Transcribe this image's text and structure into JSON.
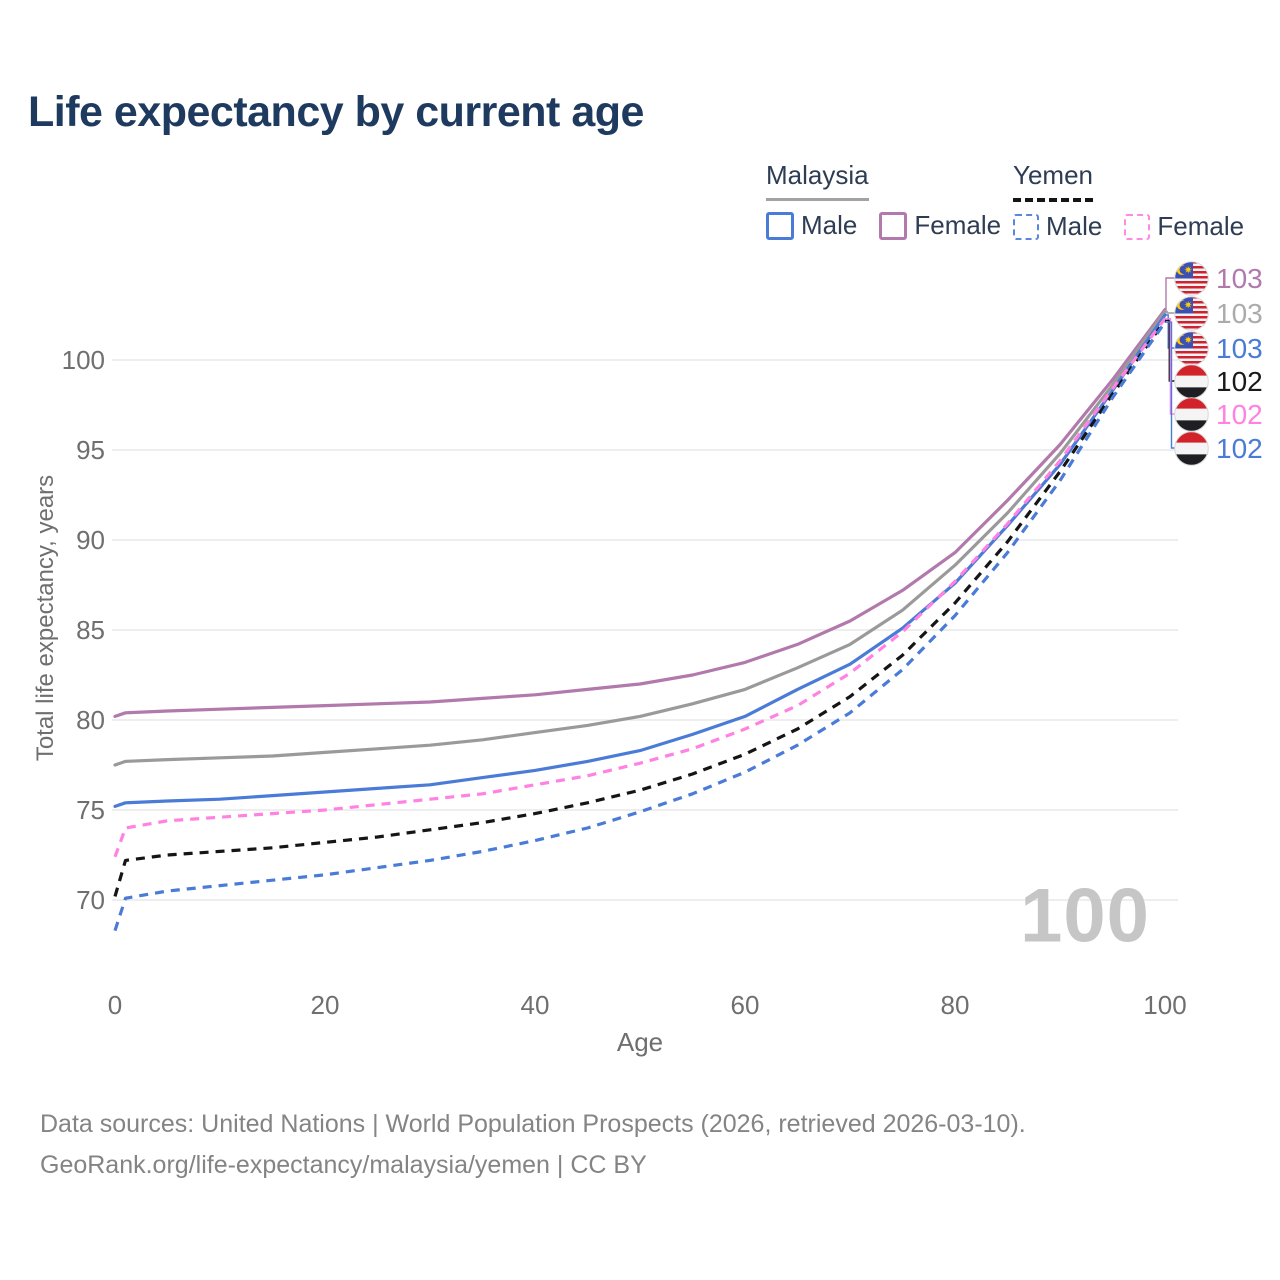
{
  "title": "Life expectancy by current age",
  "legend": {
    "groups": [
      {
        "name": "Malaysia",
        "line_style": "solid",
        "underline_color": "#a3a3a3",
        "items": [
          {
            "label": "Male",
            "color": "#4a7bd7"
          },
          {
            "label": "Female",
            "color": "#b279ac"
          }
        ]
      },
      {
        "name": "Yemen",
        "line_style": "dashed",
        "underline_color": "#151515",
        "items": [
          {
            "label": "Male",
            "color": "#5b86dd"
          },
          {
            "label": "Female",
            "color": "#ff8ae4"
          }
        ]
      }
    ]
  },
  "watermark": "100",
  "chart_data": {
    "type": "line",
    "title": "Life expectancy by current age",
    "xlabel": "Age",
    "ylabel": "Total life expectancy, years",
    "xticks": [
      "0",
      "20",
      "40",
      "60",
      "80",
      "100"
    ],
    "yticks": [
      "70",
      "75",
      "80",
      "85",
      "90",
      "95",
      "100"
    ],
    "xlim": [
      0,
      100
    ],
    "ylim": [
      66,
      105
    ],
    "grid": "horizontal",
    "ages": [
      0,
      1,
      5,
      10,
      15,
      20,
      25,
      30,
      35,
      40,
      45,
      50,
      55,
      60,
      65,
      70,
      75,
      80,
      85,
      90,
      95,
      100
    ],
    "series": [
      {
        "name": "Malaysia Female",
        "country": "Malaysia",
        "sex": "Female",
        "color": "#b279ac",
        "dashed": false,
        "values": [
          80.2,
          80.4,
          80.5,
          80.6,
          80.7,
          80.8,
          80.9,
          81.0,
          81.2,
          81.4,
          81.7,
          82.0,
          82.5,
          83.2,
          84.2,
          85.5,
          87.2,
          89.3,
          92.2,
          95.3,
          98.9,
          102.8
        ]
      },
      {
        "name": "Malaysia Both sexes",
        "country": "Malaysia",
        "sex": "Both",
        "color": "#9a9a9a",
        "dashed": false,
        "values": [
          77.5,
          77.7,
          77.8,
          77.9,
          78.0,
          78.2,
          78.4,
          78.6,
          78.9,
          79.3,
          79.7,
          80.2,
          80.9,
          81.7,
          82.9,
          84.2,
          86.1,
          88.6,
          91.5,
          94.8,
          98.6,
          102.7
        ]
      },
      {
        "name": "Malaysia Male",
        "country": "Malaysia",
        "sex": "Male",
        "color": "#4a7bd7",
        "dashed": false,
        "values": [
          75.2,
          75.4,
          75.5,
          75.6,
          75.8,
          76.0,
          76.2,
          76.4,
          76.8,
          77.2,
          77.7,
          78.3,
          79.2,
          80.2,
          81.7,
          83.1,
          85.1,
          87.6,
          90.8,
          94.2,
          98.3,
          102.5
        ]
      },
      {
        "name": "Yemen Both sexes",
        "country": "Yemen",
        "sex": "Both",
        "color": "#151515",
        "dashed": true,
        "values": [
          70.2,
          72.2,
          72.5,
          72.7,
          72.9,
          73.2,
          73.5,
          73.9,
          74.3,
          74.8,
          75.4,
          76.1,
          77.0,
          78.1,
          79.5,
          81.3,
          83.6,
          86.5,
          89.9,
          93.8,
          98.1,
          102.2
        ]
      },
      {
        "name": "Yemen Female",
        "country": "Yemen",
        "sex": "Female",
        "color": "#ff82e2",
        "dashed": true,
        "values": [
          72.4,
          74.0,
          74.4,
          74.6,
          74.8,
          75.0,
          75.3,
          75.6,
          75.9,
          76.4,
          76.9,
          77.6,
          78.4,
          79.5,
          80.8,
          82.6,
          84.9,
          87.7,
          90.9,
          94.4,
          98.4,
          102.3
        ]
      },
      {
        "name": "Yemen Male",
        "country": "Yemen",
        "sex": "Male",
        "color": "#4a7bd7",
        "dashed": true,
        "values": [
          68.3,
          70.1,
          70.5,
          70.8,
          71.1,
          71.4,
          71.8,
          72.2,
          72.7,
          73.3,
          74.0,
          74.9,
          75.9,
          77.1,
          78.6,
          80.4,
          82.8,
          85.8,
          89.3,
          93.3,
          97.9,
          102.1
        ]
      }
    ],
    "end_labels": [
      {
        "value": "103",
        "series": 0,
        "flag": "malaysia",
        "color": "#b279ac"
      },
      {
        "value": "103",
        "series": 1,
        "flag": "malaysia",
        "color": "#ababab"
      },
      {
        "value": "103",
        "series": 2,
        "flag": "malaysia",
        "color": "#4a7bd7"
      },
      {
        "value": "102",
        "series": 3,
        "flag": "yemen",
        "color": "#1a1a1a"
      },
      {
        "value": "102",
        "series": 4,
        "flag": "yemen",
        "color": "#ff82e2"
      },
      {
        "value": "102",
        "series": 5,
        "flag": "yemen",
        "color": "#4a7bd7"
      }
    ]
  },
  "footer": {
    "line1": "Data sources: United Nations | World Population Prospects (2026, retrieved 2026-03-10).",
    "line2": "GeoRank.org/life-expectancy/malaysia/yemen | CC BY"
  }
}
